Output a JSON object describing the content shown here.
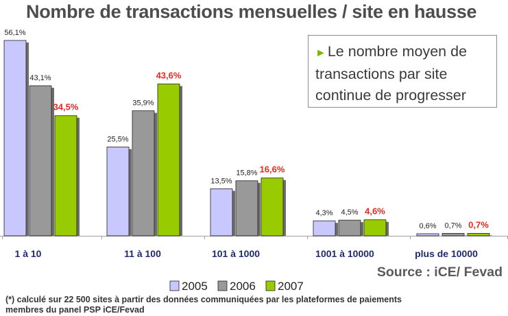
{
  "colors": {
    "s2005": "#c8c8ff",
    "s2006": "#999999",
    "s2007": "#99cc00",
    "label_2007": "#e8281e",
    "category_text": "#1f2a6b",
    "title": "#4d4d4d"
  },
  "chart_data": {
    "type": "bar",
    "title": "Nombre de transactions mensuelles / site en hausse",
    "categories": [
      "1 à 10",
      "11 à 100",
      "101 à 1000",
      "1001 à 10000",
      "plus de 10000"
    ],
    "series": [
      {
        "name": "2005",
        "values": [
          56.1,
          25.5,
          13.5,
          4.3,
          0.6
        ],
        "labels": [
          "56,1%",
          "25,5%",
          "13,5%",
          "4,3%",
          "0,6%"
        ]
      },
      {
        "name": "2006",
        "values": [
          43.1,
          35.9,
          15.8,
          4.5,
          0.7
        ],
        "labels": [
          "43,1%",
          "35,9%",
          "15,8%",
          "4,5%",
          "0,7%"
        ]
      },
      {
        "name": "2007",
        "values": [
          34.5,
          43.6,
          16.6,
          4.6,
          0.7
        ],
        "labels": [
          "34,5%",
          "43,6%",
          "16,6%",
          "4,6%",
          "0,7%"
        ]
      }
    ],
    "ylim": [
      0,
      56.1
    ],
    "grid": false,
    "legend": "bottom-center"
  },
  "callout": {
    "lines": [
      "Le nombre moyen de",
      "transactions par site",
      "continue de progresser"
    ],
    "icon": "triangle-right-icon"
  },
  "source": "Source : iCE/ Fevad",
  "footnote": {
    "line1": "(*) calculé sur 22 500 sites à partir des données communiquées par les plateformes de paiements",
    "line2": "membres du panel PSP iCE/Fevad"
  }
}
